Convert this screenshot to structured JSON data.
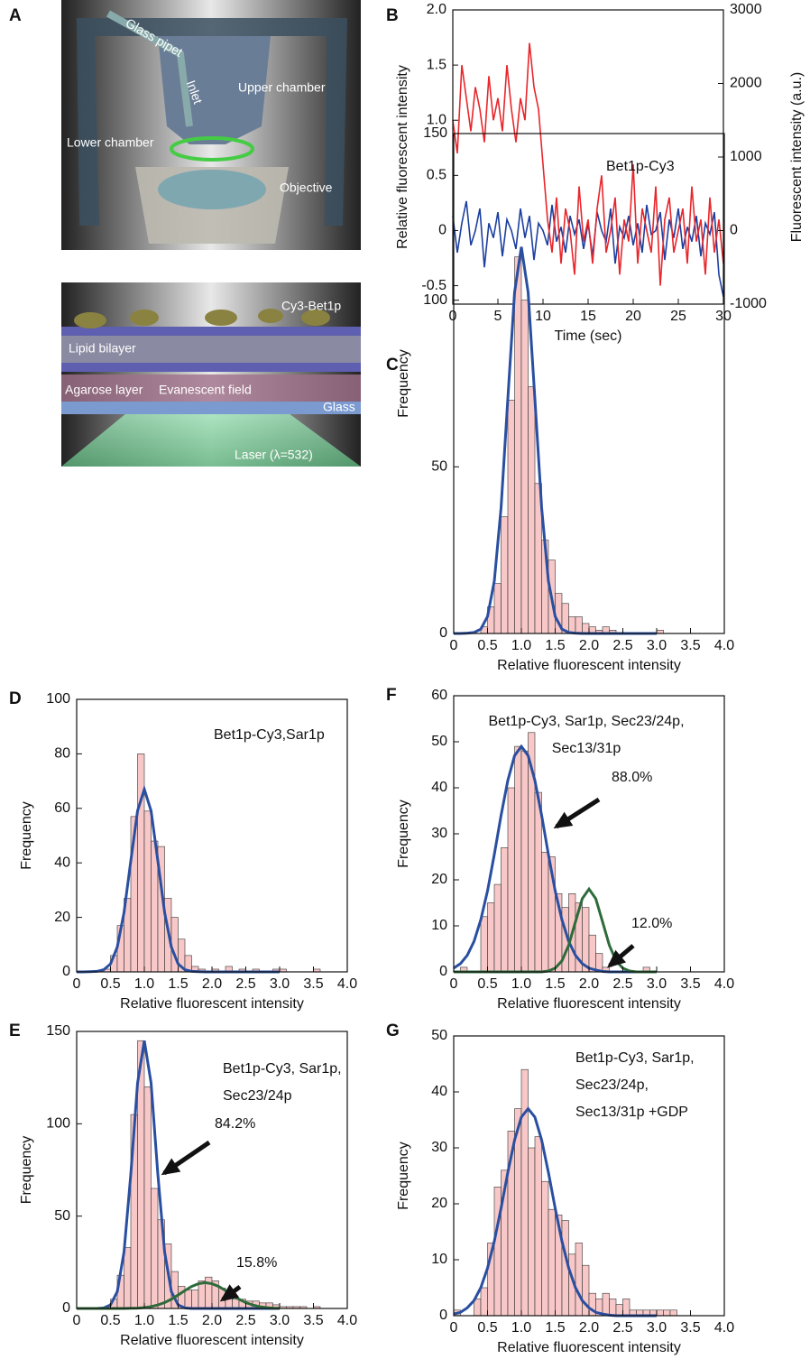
{
  "illustration": {
    "panel": "A",
    "top_labels": [
      "Glass pipet",
      "Inlet",
      "Upper chamber",
      "Lower chamber",
      "Objective"
    ],
    "bottom_labels": [
      "Cy3-Bet1p",
      "Lipid bilayer",
      "Agarose layer",
      "Evanescent field",
      "Glass",
      "Laser (λ=532)"
    ]
  },
  "chart_data": [
    {
      "type": "line",
      "panel": "B",
      "xlabel": "Time (sec)",
      "ylabel": "Relative fluorescent intensity",
      "y2label": "Fluorescent intensity (a.u.)",
      "x": [
        0,
        0.5,
        1,
        1.5,
        2,
        2.5,
        3,
        3.5,
        4,
        4.5,
        5,
        5.5,
        6,
        6.5,
        7,
        7.5,
        8,
        8.5,
        9,
        9.5,
        10,
        10.5,
        11,
        11.5,
        12,
        12.5,
        13,
        13.5,
        14,
        14.5,
        15,
        15.5,
        16,
        16.5,
        17,
        17.5,
        18,
        18.5,
        19,
        19.5,
        20,
        20.5,
        21,
        21.5,
        22,
        22.5,
        23,
        23.5,
        24,
        24.5,
        25,
        25.5,
        26,
        26.5,
        27,
        27.5,
        28,
        28.5,
        29,
        29.5,
        30
      ],
      "series": [
        {
          "color": "#1c3f9e",
          "axis": "y2",
          "values": [
            200,
            -300,
            100,
            400,
            -200,
            0,
            300,
            -500,
            100,
            -100,
            250,
            -350,
            150,
            0,
            -250,
            300,
            -100,
            200,
            -400,
            100,
            0,
            -200,
            350,
            -150,
            50,
            -300,
            200,
            -50,
            150,
            -250,
            100,
            -350,
            250,
            0,
            -150,
            300,
            -450,
            50,
            -100,
            200,
            -200,
            100,
            -300,
            350,
            -50,
            0,
            250,
            -400,
            150,
            -100,
            300,
            -250,
            50,
            -150,
            200,
            -350,
            100,
            -50,
            250,
            -600,
            -900
          ]
        },
        {
          "color": "#e8262b",
          "values": [
            1.0,
            0.7,
            1.5,
            1.2,
            0.9,
            1.3,
            1.1,
            0.8,
            1.4,
            1.0,
            1.2,
            0.9,
            1.5,
            1.1,
            0.8,
            1.2,
            1.0,
            1.7,
            1.3,
            1.1,
            0.6,
            0.1,
            -0.2,
            0.3,
            -0.3,
            0.2,
            0.0,
            -0.4,
            0.4,
            -0.1,
            0.1,
            -0.3,
            0.2,
            0.5,
            -0.2,
            0.0,
            0.3,
            -0.4,
            0.1,
            -0.1,
            0.6,
            -0.3,
            0.2,
            0.0,
            -0.2,
            0.4,
            -0.5,
            0.1,
            0.3,
            -0.2,
            0.0,
            0.2,
            -0.3,
            0.4,
            -0.1,
            0.1,
            -0.4,
            0.3,
            -0.2,
            0.1,
            -0.3
          ]
        }
      ],
      "xlim": [
        0,
        30
      ],
      "xticks": [
        0,
        5,
        10,
        15,
        20,
        25,
        30
      ],
      "ylim": [
        -0.667,
        2
      ],
      "yticks": [
        -0.5,
        0,
        0.5,
        {
          "value": 1,
          "label": "1.0"
        },
        1.5,
        {
          "value": 2,
          "label": "2.0"
        }
      ],
      "y2lim": [
        -1000,
        3000
      ],
      "y2ticks": [
        -1000,
        0,
        1000,
        2000,
        3000
      ]
    },
    {
      "type": "histogram",
      "panel": "C",
      "label_lines": [
        "Bet1p-Cy3"
      ],
      "xlabel": "Relative fluorescent intensity",
      "ylabel": "Frequency",
      "color": "#f8c8c8",
      "bins": [
        0,
        0.1,
        0.2,
        0.3,
        0.4,
        0.5,
        0.6,
        0.7,
        0.8,
        0.9,
        1,
        1.1,
        1.2,
        1.3,
        1.4,
        1.5,
        1.6,
        1.7,
        1.8,
        1.9,
        2,
        2.1,
        2.2,
        2.3,
        2.4,
        2.5,
        2.6,
        2.7,
        2.8,
        2.9,
        3,
        3.1,
        3.2,
        3.3,
        3.4,
        3.5,
        3.6,
        3.7,
        3.8,
        3.9,
        4
      ],
      "values": [
        0,
        0,
        0,
        0,
        2,
        8,
        15,
        35,
        70,
        113,
        100,
        74,
        45,
        28,
        22,
        12,
        9,
        5,
        5,
        3,
        2,
        1,
        2,
        1,
        0,
        0,
        0,
        0,
        0,
        0,
        1,
        0,
        0,
        0,
        0,
        0,
        0,
        0,
        0,
        0
      ],
      "fit_x": [
        0,
        0.1,
        0.2,
        0.3,
        0.4,
        0.5,
        0.6,
        0.7,
        0.8,
        0.9,
        1,
        1.1,
        1.2,
        1.3,
        1.4,
        1.5,
        1.6,
        1.7,
        1.8,
        1.9,
        2,
        2.1,
        2.2,
        2.3,
        2.4,
        2.5,
        2.6,
        2.7,
        2.8,
        2.9,
        3
      ],
      "fits": [
        {
          "color": "#2a4fa0",
          "values": [
            0,
            0,
            0.1,
            0.3,
            1.3,
            5.1,
            15.7,
            37.7,
            70.4,
            102.4,
            116,
            102.4,
            70.4,
            37.7,
            15.7,
            5.1,
            1.3,
            0.3,
            0.1,
            0,
            0,
            0,
            0,
            0,
            0,
            0,
            0,
            0,
            0,
            0,
            0
          ]
        }
      ],
      "annotations": [],
      "xlim": [
        0,
        4
      ],
      "xticks": [
        0,
        0.5,
        {
          "value": 1,
          "label": "1.0"
        },
        1.5,
        {
          "value": 2,
          "label": "2.0"
        },
        2.5,
        {
          "value": 3,
          "label": "3.0"
        },
        3.5,
        {
          "value": 4,
          "label": "4.0"
        }
      ],
      "ylim": [
        0,
        150
      ],
      "yticks": [
        0,
        50,
        100,
        150
      ]
    },
    {
      "type": "histogram",
      "panel": "D",
      "label_lines": [
        "Bet1p-Cy3,Sar1p"
      ],
      "xlabel": "Relative fluorescent intensity",
      "ylabel": "Frequency",
      "color": "#f8c8c8",
      "bins": [
        0,
        0.1,
        0.2,
        0.3,
        0.4,
        0.5,
        0.6,
        0.7,
        0.8,
        0.9,
        1,
        1.1,
        1.2,
        1.3,
        1.4,
        1.5,
        1.6,
        1.7,
        1.8,
        1.9,
        2,
        2.1,
        2.2,
        2.3,
        2.4,
        2.5,
        2.6,
        2.7,
        2.8,
        2.9,
        3,
        3.1,
        3.2,
        3.3,
        3.4,
        3.5,
        3.6,
        3.7,
        3.8,
        3.9,
        4
      ],
      "values": [
        0,
        0,
        0,
        0,
        1,
        6,
        17,
        27,
        57,
        80,
        59,
        48,
        46,
        27,
        20,
        12,
        6,
        2,
        1,
        0,
        1,
        0,
        2,
        0,
        1,
        0,
        1,
        0,
        0,
        1,
        1,
        0,
        0,
        0,
        0,
        1,
        0,
        0,
        0,
        0
      ],
      "fit_x": [
        0,
        0.1,
        0.2,
        0.3,
        0.4,
        0.5,
        0.6,
        0.7,
        0.8,
        0.9,
        1,
        1.1,
        1.2,
        1.3,
        1.4,
        1.5,
        1.6,
        1.7,
        1.8,
        1.9,
        2,
        2.1,
        2.2,
        2.3,
        2.4,
        2.5,
        2.6,
        2.7,
        2.8,
        2.9,
        3
      ],
      "fits": [
        {
          "color": "#2a4fa0",
          "values": [
            0,
            0,
            0.1,
            0.2,
            0.8,
            2.9,
            9.1,
            21.8,
            40.7,
            59.1,
            67,
            59.1,
            40.7,
            21.8,
            9.1,
            2.9,
            0.8,
            0.2,
            0.1,
            0,
            0,
            0,
            0,
            0,
            0,
            0,
            0,
            0,
            0,
            0,
            0
          ]
        }
      ],
      "annotations": [],
      "xlim": [
        0,
        4
      ],
      "xticks": [
        0,
        0.5,
        {
          "value": 1,
          "label": "1.0"
        },
        1.5,
        {
          "value": 2,
          "label": "2.0"
        },
        2.5,
        {
          "value": 3,
          "label": "3.0"
        },
        3.5,
        {
          "value": 4,
          "label": "4.0"
        }
      ],
      "ylim": [
        0,
        100
      ],
      "yticks": [
        0,
        20,
        40,
        60,
        80,
        100
      ]
    },
    {
      "type": "histogram",
      "panel": "E",
      "label_lines": [
        "Bet1p-Cy3, Sar1p,",
        "Sec23/24p"
      ],
      "xlabel": "Relative fluorescent intensity",
      "ylabel": "Frequency",
      "color": "#f8c8c8",
      "bins": [
        0,
        0.1,
        0.2,
        0.3,
        0.4,
        0.5,
        0.6,
        0.7,
        0.8,
        0.9,
        1,
        1.1,
        1.2,
        1.3,
        1.4,
        1.5,
        1.6,
        1.7,
        1.8,
        1.9,
        2,
        2.1,
        2.2,
        2.3,
        2.4,
        2.5,
        2.6,
        2.7,
        2.8,
        2.9,
        3,
        3.1,
        3.2,
        3.3,
        3.4,
        3.5,
        3.6,
        3.7,
        3.8,
        3.9,
        4
      ],
      "values": [
        0,
        0,
        0,
        0,
        0,
        5,
        18,
        33,
        105,
        145,
        120,
        65,
        48,
        35,
        20,
        12,
        10,
        10,
        15,
        17,
        15,
        11,
        8,
        5,
        5,
        4,
        4,
        3,
        3,
        2,
        1,
        1,
        1,
        1,
        0,
        1,
        0,
        0,
        0,
        0
      ],
      "fit_x": [
        0,
        0.1,
        0.2,
        0.3,
        0.4,
        0.5,
        0.6,
        0.7,
        0.8,
        0.9,
        1,
        1.1,
        1.2,
        1.3,
        1.4,
        1.5,
        1.6,
        1.7,
        1.8,
        1.9,
        2,
        2.1,
        2.2,
        2.3,
        2.4,
        2.5,
        2.6,
        2.7,
        2.8,
        2.9,
        3
      ],
      "fits": [
        {
          "color": "#2a4fa0",
          "values": [
            0,
            0,
            0,
            0,
            0.3,
            1.9,
            9.1,
            30.6,
            72.6,
            122,
            145,
            122,
            72.6,
            30.6,
            9.1,
            1.9,
            0.3,
            0,
            0,
            0,
            0,
            0,
            0,
            0,
            0,
            0,
            0,
            0,
            0,
            0,
            0
          ]
        },
        {
          "color": "#2e6b3a",
          "values": [
            0,
            0,
            0,
            0,
            0,
            0,
            0,
            0,
            0.1,
            0.2,
            0.5,
            1.0,
            1.9,
            3.2,
            5.0,
            7.3,
            9.7,
            11.9,
            13.4,
            14,
            13.4,
            11.9,
            9.7,
            7.3,
            5.0,
            3.2,
            1.9,
            1.0,
            0.5,
            0.2,
            0.1
          ]
        }
      ],
      "annotations": [
        "84.2%",
        "15.8%"
      ],
      "xlim": [
        0,
        4
      ],
      "xticks": [
        0,
        0.5,
        {
          "value": 1,
          "label": "1.0"
        },
        1.5,
        {
          "value": 2,
          "label": "2.0"
        },
        2.5,
        {
          "value": 3,
          "label": "3.0"
        },
        3.5,
        {
          "value": 4,
          "label": "4.0"
        }
      ],
      "ylim": [
        0,
        150
      ],
      "yticks": [
        0,
        50,
        100,
        150
      ]
    },
    {
      "type": "histogram",
      "panel": "F",
      "label_lines": [
        "Bet1p-Cy3, Sar1p, Sec23/24p,",
        "Sec13/31p"
      ],
      "xlabel": "Relative fluorescent intensity",
      "ylabel": "Frequency",
      "color": "#f8c8c8",
      "bins": [
        0,
        0.1,
        0.2,
        0.3,
        0.4,
        0.5,
        0.6,
        0.7,
        0.8,
        0.9,
        1,
        1.1,
        1.2,
        1.3,
        1.4,
        1.5,
        1.6,
        1.7,
        1.8,
        1.9,
        2,
        2.1,
        2.2,
        2.3,
        2.4,
        2.5,
        2.6,
        2.7,
        2.8,
        2.9,
        3,
        3.1,
        3.2,
        3.3,
        3.4,
        3.5,
        3.6,
        3.7,
        3.8,
        3.9,
        4
      ],
      "values": [
        0,
        1,
        0,
        0,
        12,
        15,
        19,
        27,
        40,
        49,
        48,
        52,
        39,
        26,
        25,
        17,
        14,
        17,
        15,
        14,
        8,
        4,
        1,
        0,
        0,
        0,
        0,
        0,
        1,
        0,
        0,
        0,
        0,
        0,
        0,
        0,
        0,
        0,
        0,
        0
      ],
      "fit_x": [
        0,
        0.1,
        0.2,
        0.3,
        0.4,
        0.5,
        0.6,
        0.7,
        0.8,
        0.9,
        1,
        1.1,
        1.2,
        1.3,
        1.4,
        1.5,
        1.6,
        1.7,
        1.8,
        1.9,
        2,
        2.1,
        2.2,
        2.3,
        2.4,
        2.5,
        2.6,
        2.7,
        2.8,
        2.9,
        3
      ],
      "fits": [
        {
          "color": "#2a4fa0",
          "values": [
            0.8,
            1.8,
            3.6,
            6.6,
            11.3,
            17.6,
            25.5,
            34.0,
            41.6,
            47.0,
            49,
            47.0,
            41.6,
            34.0,
            25.5,
            17.6,
            11.3,
            6.6,
            3.6,
            1.8,
            0.8,
            0.4,
            0.1,
            0,
            0,
            0,
            0,
            0,
            0,
            0,
            0
          ]
        },
        {
          "color": "#2e6b3a",
          "values": [
            0,
            0,
            0,
            0,
            0,
            0,
            0,
            0,
            0,
            0,
            0,
            0,
            0,
            0,
            0.2,
            0.8,
            2.4,
            5.8,
            10.9,
            15.9,
            18,
            15.9,
            10.9,
            5.8,
            2.4,
            0.8,
            0.2,
            0,
            0,
            0,
            0
          ]
        }
      ],
      "annotations": [
        "88.0%",
        "12.0%"
      ],
      "xlim": [
        0,
        4
      ],
      "xticks": [
        0,
        0.5,
        {
          "value": 1,
          "label": "1.0"
        },
        1.5,
        {
          "value": 2,
          "label": "2.0"
        },
        2.5,
        {
          "value": 3,
          "label": "3.0"
        },
        3.5,
        {
          "value": 4,
          "label": "4.0"
        }
      ],
      "ylim": [
        0,
        60
      ],
      "yticks": [
        0,
        10,
        20,
        30,
        40,
        50,
        60
      ]
    },
    {
      "type": "histogram",
      "panel": "G",
      "label_lines": [
        "Bet1p-Cy3, Sar1p,",
        "Sec23/24p,",
        "Sec13/31p +GDP"
      ],
      "xlabel": "Relative fluorescent intensity",
      "ylabel": "Frequency",
      "color": "#f8c8c8",
      "bins": [
        0,
        0.1,
        0.2,
        0.3,
        0.4,
        0.5,
        0.6,
        0.7,
        0.8,
        0.9,
        1,
        1.1,
        1.2,
        1.3,
        1.4,
        1.5,
        1.6,
        1.7,
        1.8,
        1.9,
        2,
        2.1,
        2.2,
        2.3,
        2.4,
        2.5,
        2.6,
        2.7,
        2.8,
        2.9,
        3,
        3.1,
        3.2,
        3.3,
        3.4,
        3.5,
        3.6,
        3.7,
        3.8,
        3.9,
        4
      ],
      "values": [
        1,
        0,
        0,
        3,
        5,
        13,
        23,
        26,
        33,
        37,
        44,
        30,
        32,
        24,
        19,
        18,
        17,
        11,
        13,
        9,
        4,
        3,
        4,
        3,
        2,
        3,
        1,
        1,
        1,
        1,
        1,
        1,
        1,
        0,
        0,
        0,
        0,
        0,
        0,
        0
      ],
      "fit_x": [
        0,
        0.1,
        0.2,
        0.3,
        0.4,
        0.5,
        0.6,
        0.7,
        0.8,
        0.9,
        1,
        1.1,
        1.2,
        1.3,
        1.4,
        1.5,
        1.6,
        1.7,
        1.8,
        1.9,
        2,
        2.1,
        2.2,
        2.3,
        2.4,
        2.5,
        2.6,
        2.7,
        2.8,
        2.9,
        3
      ],
      "fits": [
        {
          "color": "#2a4fa0",
          "values": [
            0.3,
            0.6,
            1.4,
            2.7,
            5.0,
            8.5,
            13.3,
            19.2,
            25.6,
            31.4,
            35.5,
            37,
            35.5,
            31.4,
            25.6,
            19.2,
            13.3,
            8.5,
            5.0,
            2.7,
            1.4,
            0.6,
            0.3,
            0.1,
            0,
            0,
            0,
            0,
            0,
            0,
            0
          ]
        }
      ],
      "annotations": [],
      "xlim": [
        0,
        4
      ],
      "xticks": [
        0,
        0.5,
        {
          "value": 1,
          "label": "1.0"
        },
        1.5,
        {
          "value": 2,
          "label": "2.0"
        },
        2.5,
        {
          "value": 3,
          "label": "3.0"
        },
        3.5,
        {
          "value": 4,
          "label": "4.0"
        }
      ],
      "ylim": [
        0,
        50
      ],
      "yticks": [
        0,
        10,
        20,
        30,
        40,
        50
      ]
    }
  ]
}
